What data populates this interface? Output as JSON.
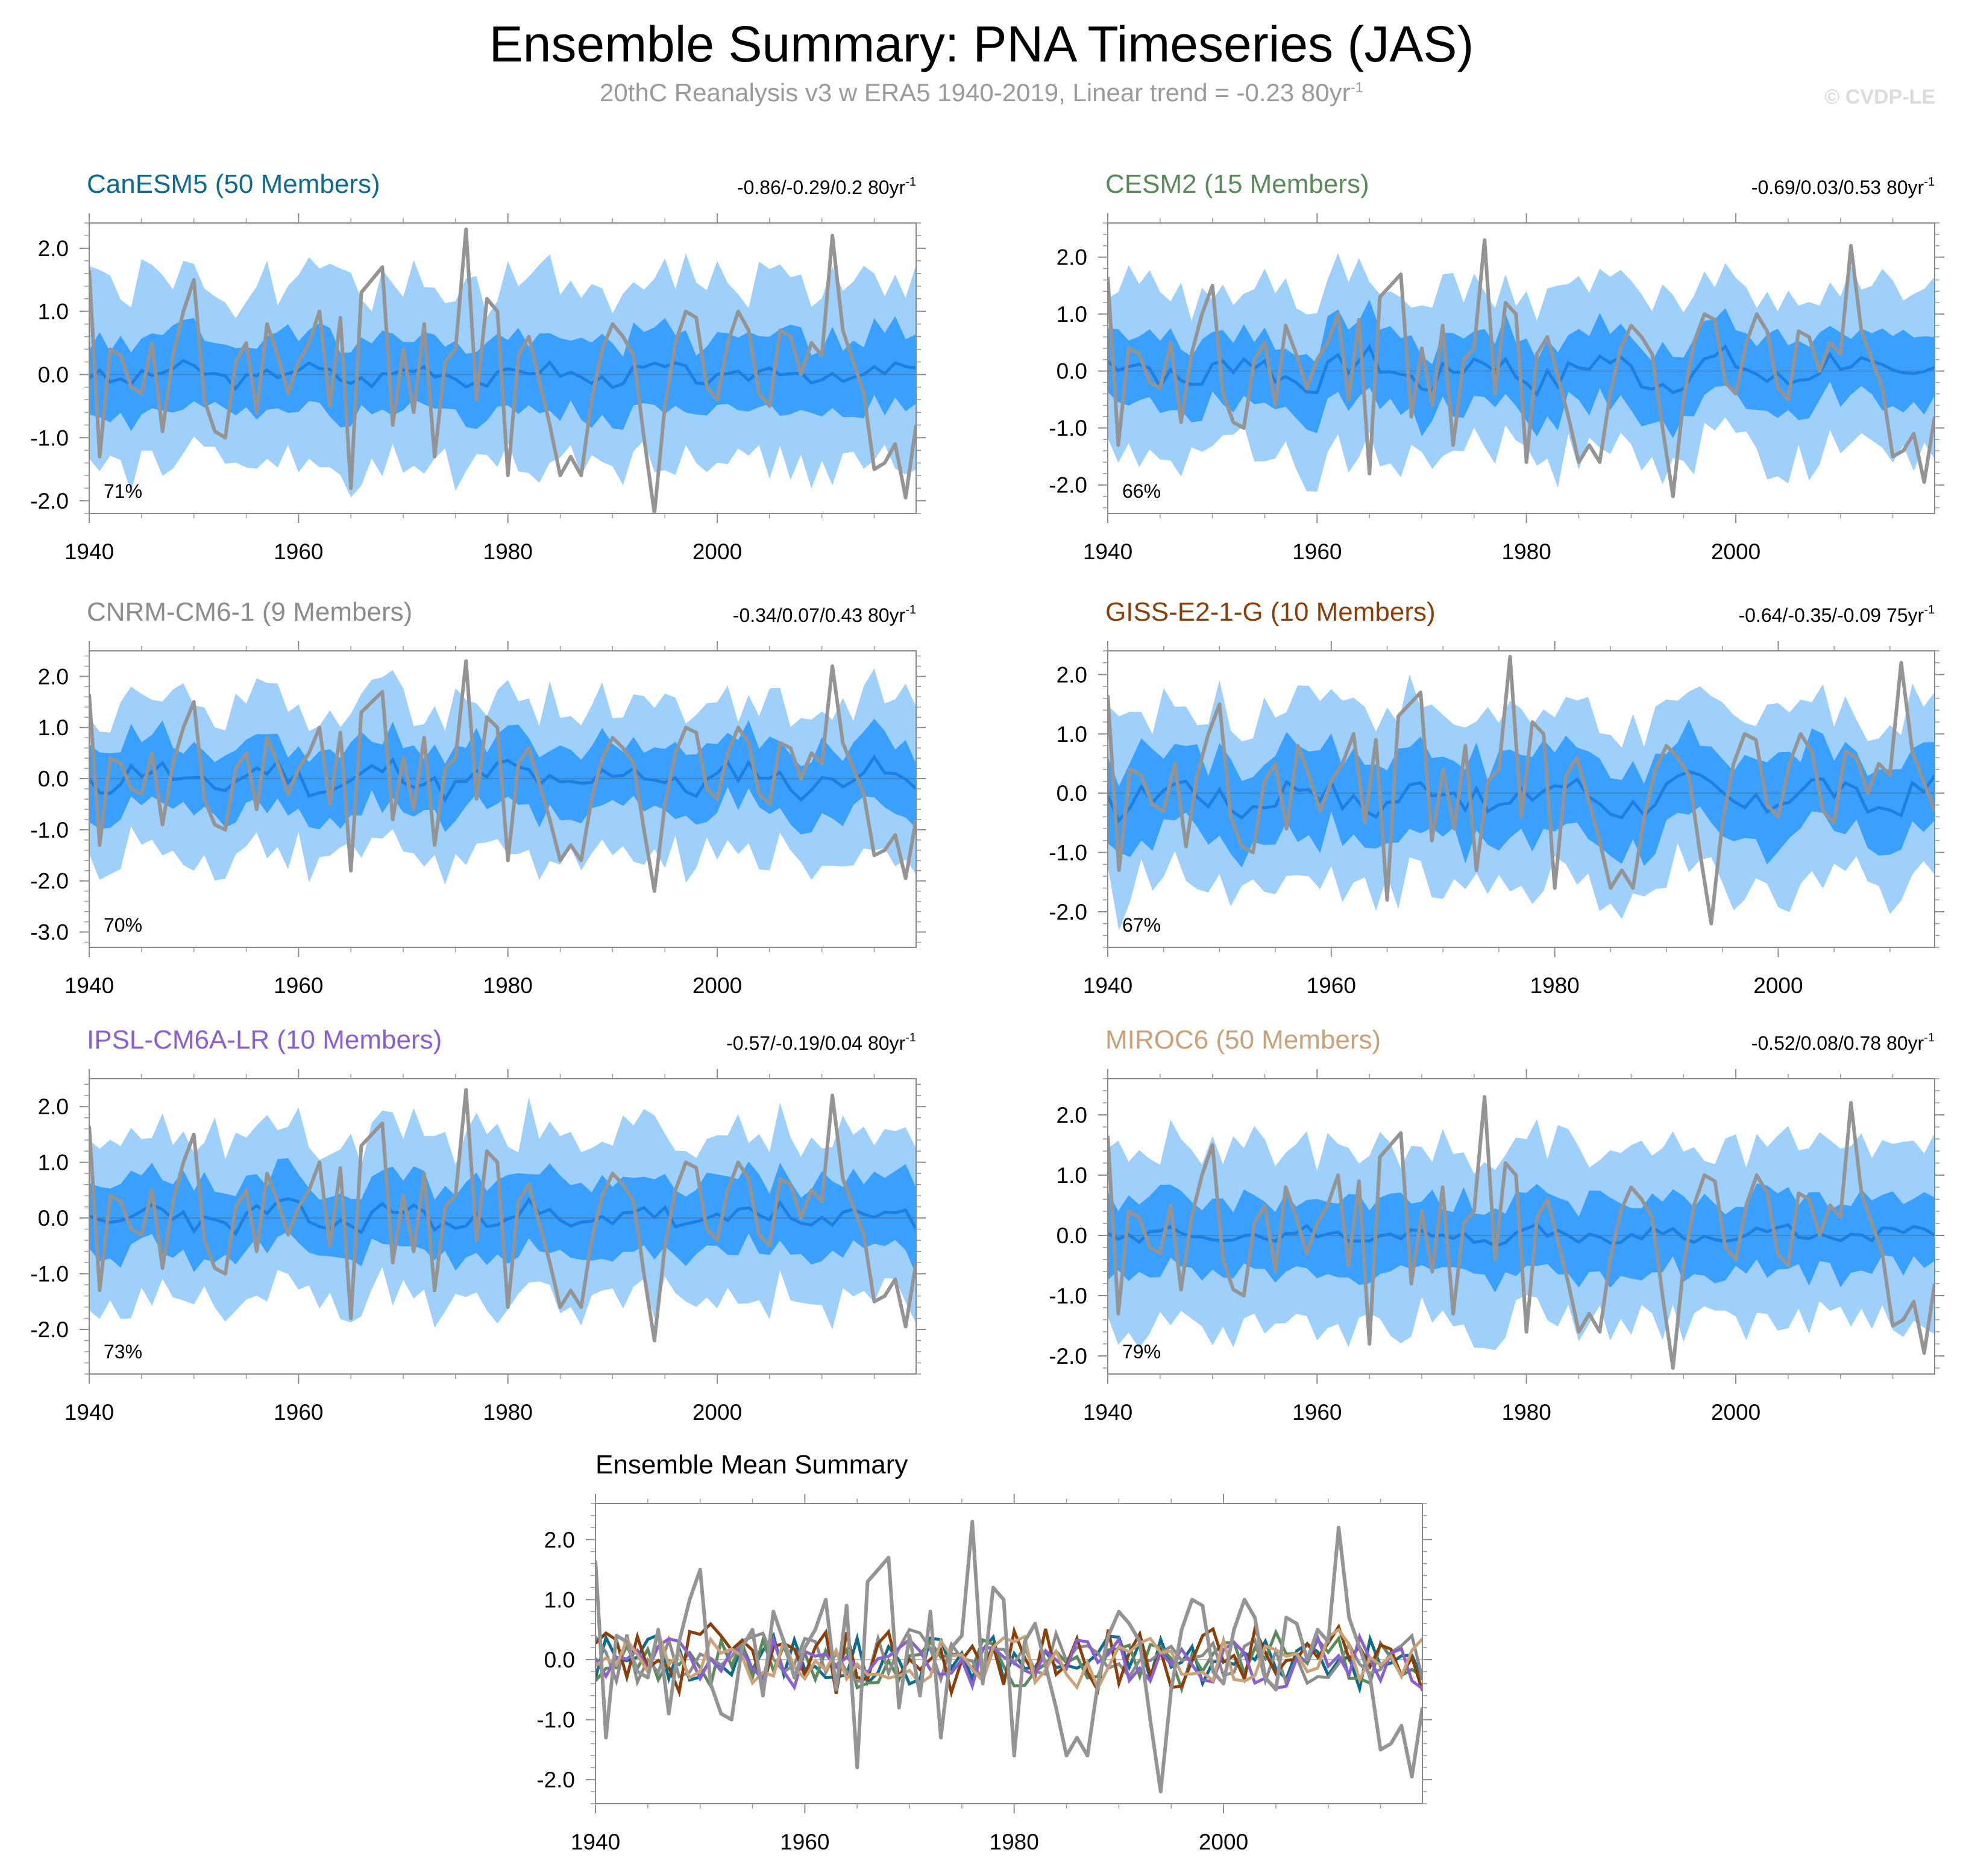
{
  "title": "Ensemble Summary: PNA Timeseries (JAS)",
  "subtitle": "20thC Reanalysis v3 w ERA5 1940-2019, Linear trend = -0.23 80yr",
  "subtitle_exponent": "-1",
  "watermark": "© CVDP-LE",
  "colors": {
    "outer_band": "#9fcffb",
    "inner_band": "#3aa0ff",
    "ensemble_mean": "#1e7fe0",
    "observed": "#949494"
  },
  "chart_data": [
    {
      "type": "area",
      "title": "CanESM5 (50 Members)",
      "title_color": "#0e6b8c",
      "trend": "-0.86/-0.29/0.2 80yr",
      "trend_exponent": "-1",
      "percent": "71%",
      "years": [
        1940,
        2019
      ],
      "ylim": [
        -2.2,
        2.4
      ],
      "yticks": [
        2.0,
        1.0,
        0.0,
        -1.0,
        -2.0
      ],
      "ytick_labels": [
        "2.0",
        "1.0",
        "0.0",
        "-1.0",
        "-2.0"
      ],
      "xticks": [
        1940,
        1960,
        1980,
        2000
      ],
      "xtick_labels": [
        "1940",
        "1960",
        "1980",
        "2000"
      ],
      "spread_outer": 1.45,
      "spread_inner": 0.6,
      "mean_amp": 0.18,
      "mean_offset": 0.0,
      "seed": 3
    },
    {
      "type": "area",
      "title": "CESM2 (15 Members)",
      "title_color": "#5a8a5a",
      "trend": "-0.69/0.03/0.53 80yr",
      "trend_exponent": "-1",
      "percent": "66%",
      "years": [
        1940,
        2019
      ],
      "ylim": [
        -2.5,
        2.6
      ],
      "yticks": [
        2.0,
        1.0,
        0.0,
        -1.0,
        -2.0
      ],
      "ytick_labels": [
        "2.0",
        "1.0",
        "0.0",
        "-1.0",
        "-2.0"
      ],
      "xticks": [
        1940,
        1960,
        1980,
        2000
      ],
      "xtick_labels": [
        "1940",
        "1960",
        "1980",
        "2000"
      ],
      "spread_outer": 1.45,
      "spread_inner": 0.65,
      "mean_amp": 0.35,
      "mean_offset": 0.0,
      "seed": 7
    },
    {
      "type": "area",
      "title": "CNRM-CM6-1 (9 Members)",
      "title_color": "#8c8c8c",
      "trend": "-0.34/0.07/0.43 80yr",
      "trend_exponent": "-1",
      "percent": "70%",
      "years": [
        1940,
        2019
      ],
      "ylim": [
        -3.3,
        2.5
      ],
      "yticks": [
        2.0,
        1.0,
        0.0,
        -1.0,
        -2.0,
        -3.0
      ],
      "ytick_labels": [
        "2.0",
        "1.0",
        "0.0",
        "-1.0",
        "-2.0",
        "-3.0"
      ],
      "xticks": [
        1940,
        1960,
        1980,
        2000
      ],
      "xtick_labels": [
        "1940",
        "1960",
        "1980",
        "2000"
      ],
      "spread_outer": 1.5,
      "spread_inner": 0.65,
      "mean_amp": 0.35,
      "mean_offset": 0.0,
      "seed": 11
    },
    {
      "type": "area",
      "title": "GISS-E2-1-G (10 Members)",
      "title_color": "#8a3f0a",
      "trend": "-0.64/-0.35/-0.09 75yr",
      "trend_exponent": "-1",
      "percent": "67%",
      "years": [
        1940,
        2014
      ],
      "ylim": [
        -2.6,
        2.4
      ],
      "yticks": [
        2.0,
        1.0,
        0.0,
        -1.0,
        -2.0
      ],
      "ytick_labels": [
        "2.0",
        "1.0",
        "0.0",
        "-1.0",
        "-2.0"
      ],
      "xticks": [
        1940,
        1960,
        1980,
        2000
      ],
      "xtick_labels": [
        "1940",
        "1960",
        "1980",
        "2000"
      ],
      "spread_outer": 1.5,
      "spread_inner": 0.7,
      "mean_amp": 0.35,
      "mean_offset": -0.05,
      "seed": 17
    },
    {
      "type": "area",
      "title": "IPSL-CM6A-LR (10 Members)",
      "title_color": "#8a5fd0",
      "trend": "-0.57/-0.19/0.04 80yr",
      "trend_exponent": "-1",
      "percent": "73%",
      "years": [
        1940,
        2019
      ],
      "ylim": [
        -2.8,
        2.5
      ],
      "yticks": [
        2.0,
        1.0,
        0.0,
        -1.0,
        -2.0
      ],
      "ytick_labels": [
        "2.0",
        "1.0",
        "0.0",
        "-1.0",
        "-2.0"
      ],
      "xticks": [
        1940,
        1960,
        1980,
        2000
      ],
      "xtick_labels": [
        "1940",
        "1960",
        "1980",
        "2000"
      ],
      "spread_outer": 1.5,
      "spread_inner": 0.65,
      "mean_amp": 0.3,
      "mean_offset": 0.0,
      "seed": 23
    },
    {
      "type": "area",
      "title": "MIROC6 (50 Members)",
      "title_color": "#c9a27a",
      "trend": "-0.52/0.08/0.78 80yr",
      "trend_exponent": "-1",
      "percent": "79%",
      "years": [
        1940,
        2019
      ],
      "ylim": [
        -2.3,
        2.6
      ],
      "yticks": [
        2.0,
        1.0,
        0.0,
        -1.0,
        -2.0
      ],
      "ytick_labels": [
        "2.0",
        "1.0",
        "0.0",
        "-1.0",
        "-2.0"
      ],
      "xticks": [
        1940,
        1960,
        1980,
        2000
      ],
      "xtick_labels": [
        "1940",
        "1960",
        "1980",
        "2000"
      ],
      "spread_outer": 1.45,
      "spread_inner": 0.6,
      "mean_amp": 0.15,
      "mean_offset": 0.0,
      "seed": 29
    },
    {
      "type": "line",
      "title": "Ensemble Mean Summary",
      "title_color": "#000000",
      "years": [
        1940,
        2019
      ],
      "ylim": [
        -2.4,
        2.6
      ],
      "yticks": [
        2.0,
        1.0,
        0.0,
        -1.0,
        -2.0
      ],
      "ytick_labels": [
        "2.0",
        "1.0",
        "0.0",
        "-1.0",
        "-2.0"
      ],
      "xticks": [
        1940,
        1960,
        1980,
        2000
      ],
      "xtick_labels": [
        "1940",
        "1960",
        "1980",
        "2000"
      ],
      "series": [
        {
          "name": "CanESM5",
          "color": "#0e6b8c"
        },
        {
          "name": "CESM2",
          "color": "#5a8a5a"
        },
        {
          "name": "CNRM-CM6-1",
          "color": "#8c8c8c"
        },
        {
          "name": "GISS-E2-1-G",
          "color": "#8a3f0a"
        },
        {
          "name": "IPSL-CM6A-LR",
          "color": "#8a5fd0"
        },
        {
          "name": "MIROC6",
          "color": "#c9a27a"
        }
      ]
    }
  ],
  "observed": {
    "name": "20thC Reanalysis v3 w ERA5",
    "start_year": 1940,
    "values": [
      1.65,
      -1.3,
      0.4,
      0.3,
      -0.2,
      -0.3,
      0.5,
      -0.9,
      0.3,
      1.0,
      1.5,
      -0.4,
      -0.9,
      -1.0,
      0.2,
      0.5,
      -0.6,
      0.8,
      0.3,
      -0.3,
      0.2,
      0.5,
      1.0,
      -0.5,
      0.9,
      -1.8,
      1.3,
      1.5,
      1.7,
      -0.8,
      0.4,
      -0.6,
      0.8,
      -1.3,
      0.2,
      0.4,
      2.3,
      -0.4,
      1.2,
      1.0,
      -1.6,
      0.3,
      0.6,
      -0.1,
      -0.8,
      -1.6,
      -1.3,
      -1.6,
      -0.4,
      0.4,
      0.8,
      0.6,
      0.3,
      -1.0,
      -2.2,
      -0.5,
      0.5,
      1.0,
      0.9,
      -0.2,
      -0.4,
      0.5,
      1.0,
      0.7,
      -0.3,
      -0.5,
      0.7,
      0.6,
      0.0,
      0.5,
      0.3,
      2.2,
      0.7,
      0.2,
      -0.3,
      -1.5,
      -1.4,
      -1.1,
      -1.95,
      -0.8
    ]
  }
}
